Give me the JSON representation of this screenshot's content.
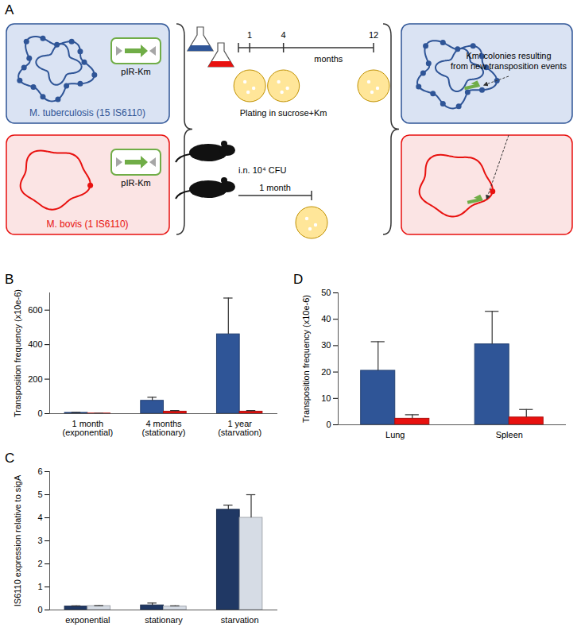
{
  "diagram": {
    "title": "A",
    "strains": [
      {
        "label": "M. tuberculosis (15 IS6110)",
        "color": "#2f5597",
        "dots": 15
      },
      {
        "label": "M. bovis (1 IS6110)",
        "color": "#e8110f",
        "dots": 1
      }
    ],
    "plasmid": "pIR-Km",
    "timeline": {
      "ticks": [
        1,
        4,
        12
      ],
      "unit": "months"
    },
    "plating": "Plating in sucrose+Km",
    "mouse": "i.n. 10⁴ CFU",
    "mouse_time": "1 month",
    "result": [
      "Kmʳ colonies resulting",
      "from new transposition events"
    ]
  },
  "chart_data": [
    {
      "title": "B",
      "type": "bar",
      "categories": [
        "1 month\n(exponential)",
        "4 months\n(stationary)",
        "1 year\n(starvation)"
      ],
      "ylabel": "Transposition frequency (x10e-6)",
      "ylim": [
        0,
        700
      ],
      "yticks": [
        0,
        200,
        400,
        600
      ],
      "series": [
        {
          "color": "#2f5597",
          "values": [
            5,
            75,
            460
          ],
          "errors": [
            3,
            20,
            210
          ]
        },
        {
          "color": "#e8110f",
          "values": [
            1,
            12,
            12
          ],
          "errors": [
            1,
            6,
            6
          ]
        }
      ]
    },
    {
      "title": "C",
      "type": "bar",
      "categories": [
        "exponential",
        "stationary",
        "starvation"
      ],
      "ylabel": "IS6110 expression relative to sigA",
      "ylim": [
        0,
        6
      ],
      "yticks": [
        0,
        1,
        2,
        3,
        4,
        5,
        6
      ],
      "series": [
        {
          "color": "#203864",
          "values": [
            0.15,
            0.2,
            4.35
          ],
          "errors": [
            0.03,
            0.1,
            0.2
          ]
        },
        {
          "color": "#d6dce5",
          "values": [
            0.17,
            0.15,
            4.0
          ],
          "errors": [
            0.02,
            0.03,
            1.0
          ]
        }
      ]
    },
    {
      "title": "D",
      "type": "bar",
      "categories": [
        "Lung",
        "Spleen"
      ],
      "ylabel": "Transposition frequency (x10e-6)",
      "ylim": [
        0,
        50
      ],
      "yticks": [
        0,
        10,
        20,
        30,
        40,
        50
      ],
      "series": [
        {
          "color": "#2f5597",
          "values": [
            20.5,
            30.5
          ],
          "errors": [
            11,
            12.5
          ]
        },
        {
          "color": "#e8110f",
          "values": [
            2.3,
            2.8
          ],
          "errors": [
            1.5,
            3
          ]
        }
      ]
    }
  ]
}
